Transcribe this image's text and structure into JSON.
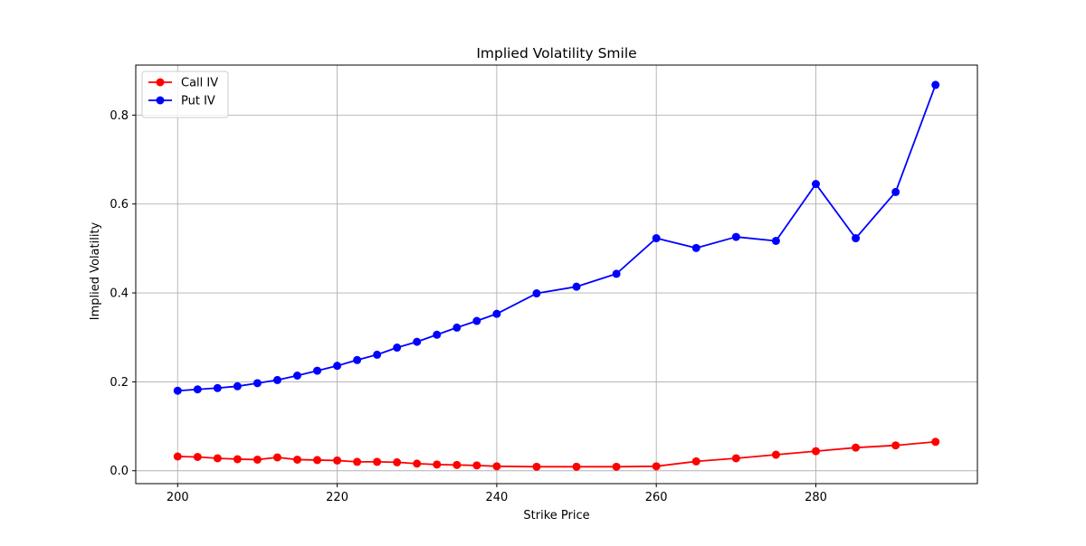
{
  "chart_data": {
    "type": "line",
    "title": "Implied Volatility Smile",
    "xlabel": "Strike Price",
    "ylabel": "Implied Volatility",
    "xlim": [
      194.75,
      300.25
    ],
    "ylim": [
      -0.029,
      0.9125
    ],
    "xticks": [
      200,
      220,
      240,
      260,
      280
    ],
    "yticks": [
      0.0,
      0.2,
      0.4,
      0.6,
      0.8
    ],
    "xtick_labels": [
      "200",
      "220",
      "240",
      "260",
      "280"
    ],
    "ytick_labels": [
      "0.0",
      "0.2",
      "0.4",
      "0.6",
      "0.8"
    ],
    "grid": true,
    "legend_position": "top-left",
    "series": [
      {
        "name": "Call IV",
        "color": "#ff0000",
        "marker": "circle",
        "x": [
          200,
          202.5,
          205,
          207.5,
          210,
          212.5,
          215,
          217.5,
          220,
          222.5,
          225,
          227.5,
          230,
          232.5,
          235,
          237.5,
          240,
          245,
          250,
          255,
          260,
          265,
          270,
          275,
          280,
          285,
          290,
          295
        ],
        "y": [
          0.032,
          0.031,
          0.028,
          0.026,
          0.025,
          0.03,
          0.025,
          0.024,
          0.023,
          0.02,
          0.02,
          0.019,
          0.016,
          0.014,
          0.013,
          0.012,
          0.01,
          0.009,
          0.009,
          0.009,
          0.01,
          0.021,
          0.028,
          0.036,
          0.044,
          0.052,
          0.057,
          0.065
        ]
      },
      {
        "name": "Put IV",
        "color": "#0000ff",
        "marker": "circle",
        "x": [
          200,
          202.5,
          205,
          207.5,
          210,
          212.5,
          215,
          217.5,
          220,
          222.5,
          225,
          227.5,
          230,
          232.5,
          235,
          237.5,
          240,
          245,
          250,
          255,
          260,
          265,
          270,
          275,
          280,
          285,
          290,
          295
        ],
        "y": [
          0.18,
          0.183,
          0.186,
          0.19,
          0.197,
          0.204,
          0.214,
          0.225,
          0.236,
          0.249,
          0.261,
          0.277,
          0.29,
          0.306,
          0.322,
          0.337,
          0.353,
          0.399,
          0.414,
          0.443,
          0.523,
          0.501,
          0.526,
          0.517,
          0.645,
          0.523,
          0.627,
          0.868
        ]
      }
    ]
  }
}
